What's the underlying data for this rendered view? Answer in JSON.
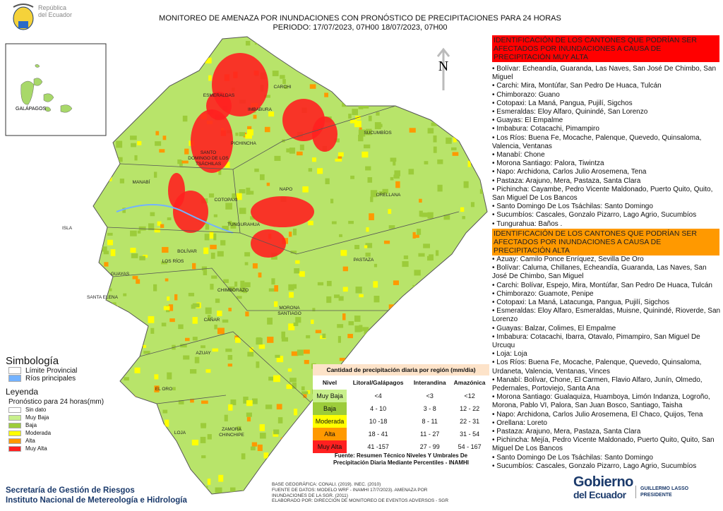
{
  "header": {
    "logo": [
      "República",
      "del Ecuador"
    ],
    "title": [
      "MONITOREO DE AMENAZA POR INUNDACIONES  CON PRONÓSTICO DE  PRECIPITACIONES PARA 24 HORAS",
      "PERIODO: 17/07/2023, 07H00 18/07/2023, 07H00"
    ]
  },
  "map": {
    "north": "N",
    "inset_label": "GALÁPAGOS",
    "labels": [
      [
        "ESMERALDAS"
      ],
      [
        "CARCHI"
      ],
      [
        "IMBABURA"
      ],
      [
        "SUCUMBÍOS"
      ],
      [
        "PICHINCHA"
      ],
      [
        "SANTO",
        "DOMINGO DE LOS",
        "TSÁCHILAS"
      ],
      [
        "MANABÍ"
      ],
      [
        "NAPO"
      ],
      [
        "ORELLANA"
      ],
      [
        "COTOPAXI"
      ],
      [
        "ISLA"
      ],
      [
        "TUNGURAHUA"
      ],
      [
        "BOLÍVAR"
      ],
      [
        "LOS RÍOS"
      ],
      [
        "PASTAZA"
      ],
      [
        "GUAYAS"
      ],
      [
        "CHIMBORAZO"
      ],
      [
        "SANTA ELENA"
      ],
      [
        "MORONA",
        "SANTIAGO"
      ],
      [
        "CAÑAR"
      ],
      [
        "AZUAY"
      ],
      [
        "EL ORO"
      ],
      [
        "LOJA"
      ],
      [
        "ZAMORA",
        "CHINCHIPE"
      ]
    ]
  },
  "panel": [
    {
      "title": "IDENTIFICACIÓN DE LOS CANTONES QUE PODRÍAN SER AFECTADOS POR INUNDACIONES  A CAUSA DE PRECIPITACIÓN MUY ALTA",
      "color": "#ff0000",
      "items": [
        "Bolívar: Echeandía, Guaranda, Las Naves, San José De Chimbo, San Miguel",
        "Carchi: Mira, Montúfar, San Pedro De Huaca, Tulcán",
        "Chimborazo: Guano",
        "Cotopaxi: La Maná, Pangua, Pujilí, Sigchos",
        "Esmeraldas: Eloy Alfaro, Quinindé, San Lorenzo",
        "Guayas: El Empalme",
        "Imbabura: Cotacachi, Pimampiro",
        "Los Ríos: Buena Fe, Mocache, Palenque, Quevedo, Quinsaloma, Valencia, Ventanas",
        "Manabí: Chone",
        "Morona Santiago: Palora, Tiwintza",
        "Napo: Archidona, Carlos Julio Arosemena, Tena",
        "Pastaza: Arajuno, Mera, Pastaza, Santa Clara",
        "Pichincha: Cayambe, Pedro Vicente Maldonado, Puerto Quito, Quito, San Miguel De Los Bancos",
        "Santo Domingo De Los Tsáchilas: Santo Domingo",
        "Sucumbíos: Cascales, Gonzalo Pizarro, Lago Agrio, Sucumbíos",
        "Tungurahua: Baños ."
      ]
    },
    {
      "title": "IDENTIFICACIÓN DE LOS CANTONES QUE  PODRÍAN SER AFECTADOS POR INUNDACIONES  A CAUSA DE PRECIPITACIÓN ALTA",
      "color": "#ff9900",
      "items": [
        "Azuay: Camilo Ponce Enríquez, Sevilla De Oro",
        "Bolívar: Caluma, Chillanes, Echeandía, Guaranda, Las Naves, San José De Chimbo, San Miguel",
        "Carchi: Bolívar, Espejo, Mira, Montúfar, San Pedro De Huaca, Tulcán",
        "Chimborazo: Guamote, Penipe",
        "Cotopaxi: La Maná, Latacunga, Pangua, Pujilí, Sigchos",
        "Esmeraldas: Eloy Alfaro, Esmeraldas, Muisne, Quinindé, Rioverde, San Lorenzo",
        "Guayas: Balzar, Colimes, El Empalme",
        "Imbabura: Cotacachi, Ibarra, Otavalo, Pimampiro, San Miguel De Urcuqu",
        "Loja: Loja",
        "Los Ríos: Buena Fe, Mocache, Palenque, Quevedo, Quinsaloma, Urdaneta, Valencia, Ventanas, Vinces",
        "Manabí: Bolívar, Chone, El Carmen, Flavio Alfaro, Junín, Olmedo, Pedernales, Portoviejo, Santa Ana",
        "Morona Santiago: Gualaquiza, Huamboya, Limón Indanza, Logroño, Morona, Pablo VI, Palora, San Juan Bosco, Santiago, Taisha",
        "Napo: Archidona, Carlos Julio Arosemena, El Chaco, Quijos, Tena",
        "Orellana: Loreto",
        "Pastaza: Arajuno, Mera, Pastaza, Santa Clara",
        "Pichincha: Mejía, Pedro Vicente Maldonado, Puerto Quito, Quito, San Miguel De Los Bancos",
        "Santo Domingo De Los Tsáchilas: Santo Domingo",
        "Sucumbíos: Cascales, Gonzalo Pizarro, Lago Agrio, Sucumbíos"
      ]
    }
  ],
  "legend": {
    "symbology_title": "Simbología",
    "symbology": [
      {
        "label": "Límite Provincial",
        "color": "#ffffff"
      },
      {
        "label": "Ríos principales",
        "color": "#73b2ff"
      }
    ],
    "title": "Leyenda",
    "subtitle": "Pronóstico para 24 horas(mm)",
    "items": [
      {
        "label": "Sin dato",
        "color": "#ffffff"
      },
      {
        "label": "Muy Baja",
        "color": "#c8f08c"
      },
      {
        "label": "Baja",
        "color": "#9ccc3a"
      },
      {
        "label": "Moderada",
        "color": "#ffff00"
      },
      {
        "label": "Alta",
        "color": "#ff9900"
      },
      {
        "label": "Muy Alta",
        "color": "#ff2020"
      }
    ]
  },
  "table": {
    "title": "Cantidad de precipitación diaria por región (mm/dia)",
    "headers": [
      "Nivel",
      "Litoral/Galápagos",
      "Interandina",
      "Amazónica"
    ],
    "rows": [
      {
        "color": "#c8f08c",
        "cells": [
          "Muy Baja",
          "<4",
          "<3",
          "<12"
        ]
      },
      {
        "color": "#9ccc3a",
        "cells": [
          "Baja",
          "4 - 10",
          "3 - 8",
          "12 - 22"
        ]
      },
      {
        "color": "#ffff00",
        "cells": [
          "Moderada",
          "10 -18",
          "8 - 11",
          "22 - 31"
        ]
      },
      {
        "color": "#ff9900",
        "cells": [
          "Alta",
          "18 - 41",
          "11 - 27",
          "31 - 54"
        ]
      },
      {
        "color": "#ff2020",
        "cells": [
          "Muy Alta",
          "41 -157",
          "27 - 99",
          "54 - 167"
        ]
      }
    ],
    "source": [
      "Fuente: Resumen Técnico Niveles Y Umbrales De",
      "Precipitación Diaria Mediante Percentiles - INAMHI"
    ]
  },
  "footer": {
    "org": [
      "Secretaría de Gestión de Riesgos",
      "Instituto Nacional de Metereología e Hidrología"
    ],
    "notes": [
      "BASE GEOGRÁFICA: CONALI. (2019). INEC. (2010)",
      "FUENTE DE DATOS: MODELO WRF - INAMHI 17/7/2023).  AMENAZA POR",
      "INUNDACIONES DE LA SGR. (2011)",
      "ELABORADO POR: DIRECCIÓN DE MONITOREO DE EVENTOS ADVERSOS - SGR"
    ],
    "gov": [
      "Gobierno",
      "del Ecuador"
    ],
    "president": [
      "GUILLERMO LASSO",
      "PRESIDENTE"
    ]
  }
}
